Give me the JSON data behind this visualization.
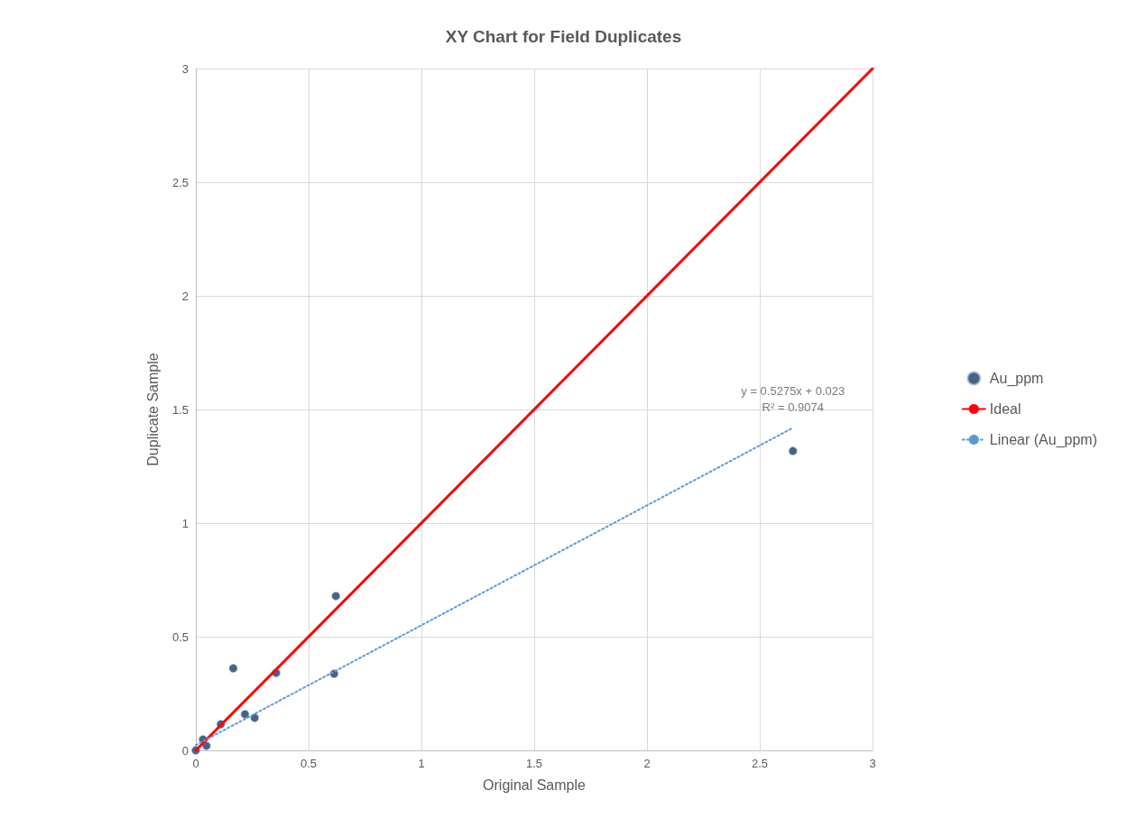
{
  "chart_data": {
    "type": "scatter",
    "title": "XY Chart for Field Duplicates",
    "xlabel": "Original Sample",
    "ylabel": "Duplicate Sample",
    "xlim": [
      0,
      3
    ],
    "ylim": [
      0,
      3
    ],
    "xticks": [
      0,
      0.5,
      1,
      1.5,
      2,
      2.5,
      3
    ],
    "yticks": [
      0,
      0.5,
      1,
      1.5,
      2,
      2.5,
      3
    ],
    "grid": true,
    "legend": "right",
    "series": [
      {
        "name": "Au_ppm",
        "marker": "circle",
        "color": "#1f3864",
        "x": [
          0.166,
          0.356,
          0.621,
          0.613,
          2.647,
          0.111,
          0.218,
          0.261,
          0.047,
          0.032,
          0.02,
          0.01,
          0.005,
          0.0
        ],
        "values": [
          0.361,
          0.341,
          0.679,
          0.337,
          1.317,
          0.115,
          0.159,
          0.143,
          0.02,
          0.048,
          null,
          null,
          null,
          0.0
        ]
      },
      {
        "name": "Ideal",
        "type": "line",
        "marker": "none",
        "line_style": "solid",
        "color": "#ff0000",
        "x": [
          0,
          3
        ],
        "values": [
          0,
          3
        ]
      },
      {
        "name": "Linear (Au_ppm)",
        "type": "line",
        "marker": "none",
        "line_style": "dotted",
        "color": "#5b9bd5",
        "x": [
          0,
          2.647
        ],
        "values": [
          0.023,
          1.419
        ]
      }
    ],
    "annotations": [
      {
        "text": "y = 0.5275x + 0.023\nR² = 0.9074",
        "x": 2.647,
        "y": 1.419
      }
    ]
  }
}
